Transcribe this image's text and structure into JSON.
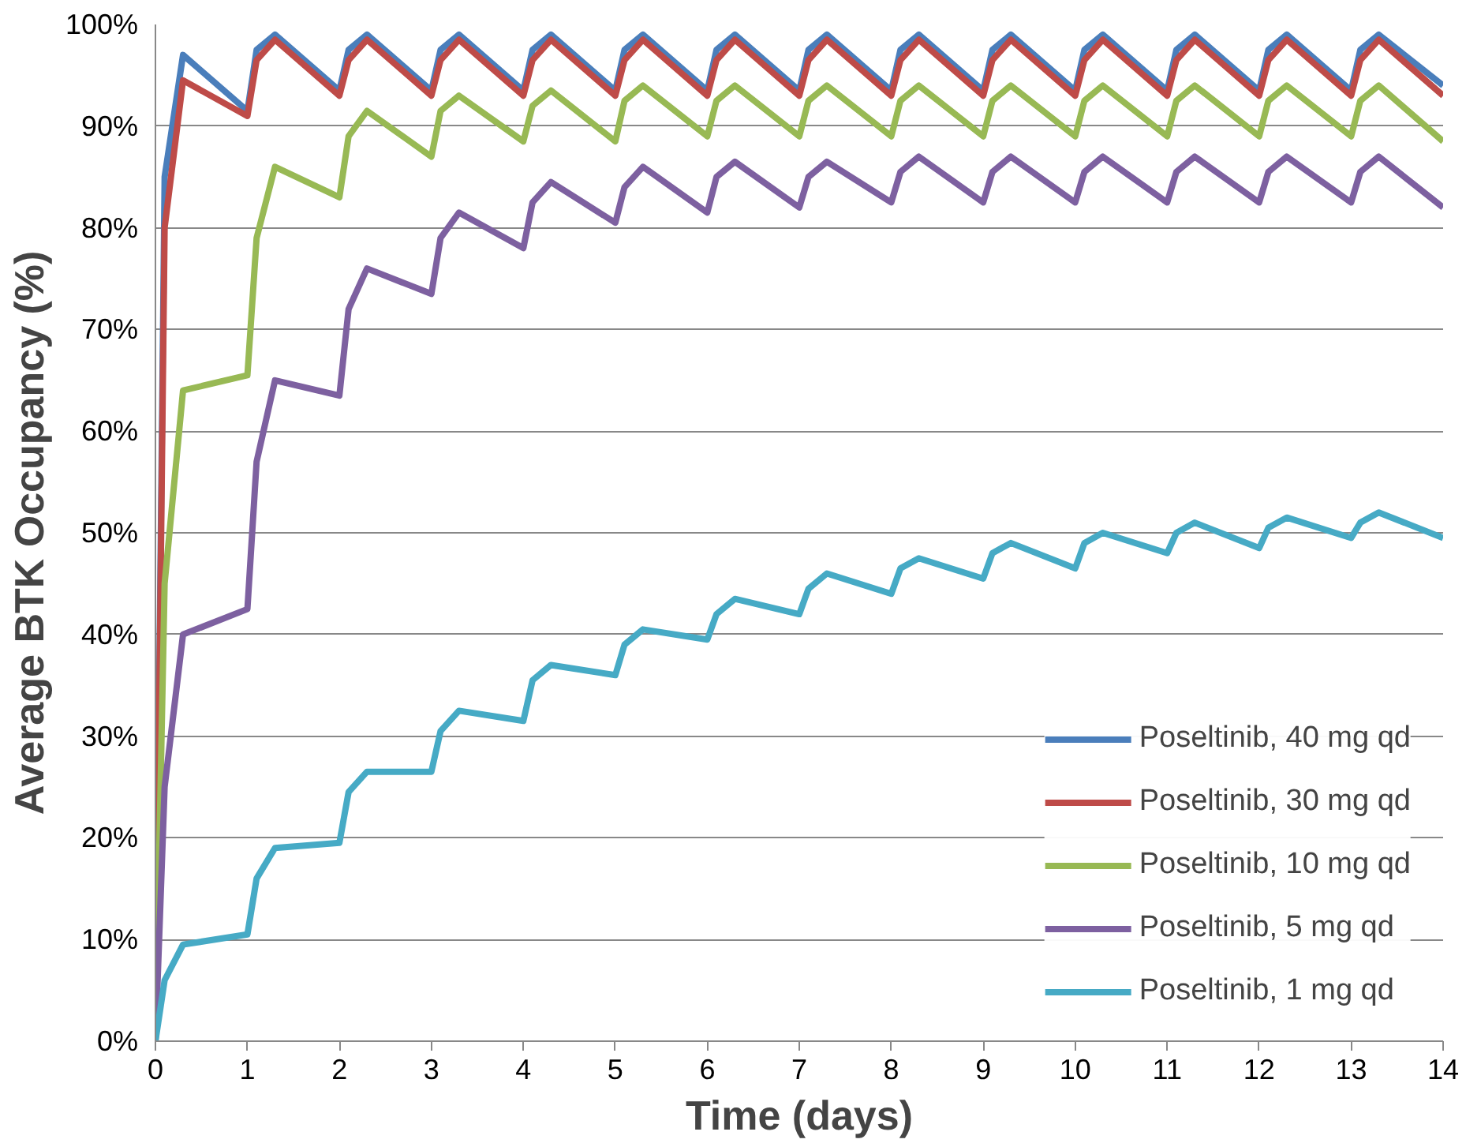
{
  "chart_data": {
    "type": "line",
    "xlabel": "Time (days)",
    "ylabel": "Average BTK Occupancy (%)",
    "x": [
      0,
      0.1,
      0.3,
      1,
      1.1,
      1.3,
      2,
      2.1,
      2.3,
      3,
      3.1,
      3.3,
      4,
      4.1,
      4.3,
      5,
      5.1,
      5.3,
      6,
      6.1,
      6.3,
      7,
      7.1,
      7.3,
      8,
      8.1,
      8.3,
      9,
      9.1,
      9.3,
      10,
      10.1,
      10.3,
      11,
      11.1,
      11.3,
      12,
      12.1,
      12.3,
      13,
      13.1,
      13.3,
      14
    ],
    "xlim": [
      0,
      14
    ],
    "xticks": [
      0,
      1,
      2,
      3,
      4,
      5,
      6,
      7,
      8,
      9,
      10,
      11,
      12,
      13,
      14
    ],
    "ylim": [
      0,
      100
    ],
    "yticks": [
      {
        "value": 0,
        "label": "0%"
      },
      {
        "value": 10,
        "label": "10%"
      },
      {
        "value": 20,
        "label": "20%"
      },
      {
        "value": 30,
        "label": "30%"
      },
      {
        "value": 40,
        "label": "40%"
      },
      {
        "value": 50,
        "label": "50%"
      },
      {
        "value": 60,
        "label": "60%"
      },
      {
        "value": 70,
        "label": "70%"
      },
      {
        "value": 80,
        "label": "80%"
      },
      {
        "value": 90,
        "label": "90%"
      },
      {
        "value": 100,
        "label": "100%"
      }
    ],
    "grid": "y",
    "legend": "bottom right",
    "line_style": "solid",
    "marker": "none",
    "series": [
      {
        "name": "Poseltinib, 40 mg qd",
        "color": "#4a7ebb",
        "values": [
          0,
          85,
          97,
          91.5,
          97.5,
          99,
          93.5,
          97.5,
          99,
          93.5,
          97.5,
          99,
          93.5,
          97.5,
          99,
          93.5,
          97.5,
          99,
          93.5,
          97.5,
          99,
          93.5,
          97.5,
          99,
          93.5,
          97.5,
          99,
          93.5,
          97.5,
          99,
          93.5,
          97.5,
          99,
          93.5,
          97.5,
          99,
          93.5,
          97.5,
          99,
          93.5,
          97.5,
          99,
          94
        ]
      },
      {
        "name": "Poseltinib, 30 mg qd",
        "color": "#be4b48",
        "values": [
          0,
          80,
          94.5,
          91,
          96.5,
          98.5,
          93,
          96.5,
          98.5,
          93,
          96.5,
          98.5,
          93,
          96.5,
          98.5,
          93,
          96.5,
          98.5,
          93,
          96.5,
          98.5,
          93,
          96.5,
          98.5,
          93,
          96.5,
          98.5,
          93,
          96.5,
          98.5,
          93,
          96.5,
          98.5,
          93,
          96.5,
          98.5,
          93,
          96.5,
          98.5,
          93,
          96.5,
          98.5,
          93
        ]
      },
      {
        "name": "Poseltinib, 10 mg qd",
        "color": "#98b954",
        "values": [
          0,
          45,
          64,
          65.5,
          79,
          86,
          83,
          89,
          91.5,
          87,
          91.5,
          93,
          88.5,
          92,
          93.5,
          88.5,
          92.5,
          94,
          89,
          92.5,
          94,
          89,
          92.5,
          94,
          89,
          92.5,
          94,
          89,
          92.5,
          94,
          89,
          92.5,
          94,
          89,
          92.5,
          94,
          89,
          92.5,
          94,
          89,
          92.5,
          94,
          88.5
        ]
      },
      {
        "name": "Poseltinib, 5 mg qd",
        "color": "#7d60a0",
        "values": [
          0,
          25,
          40,
          42.5,
          57,
          65,
          63.5,
          72,
          76,
          73.5,
          79,
          81.5,
          78,
          82.5,
          84.5,
          80.5,
          84,
          86,
          81.5,
          85,
          86.5,
          82,
          85,
          86.5,
          82.5,
          85.5,
          87,
          82.5,
          85.5,
          87,
          82.5,
          85.5,
          87,
          82.5,
          85.5,
          87,
          82.5,
          85.5,
          87,
          82.5,
          85.5,
          87,
          82
        ]
      },
      {
        "name": "Poseltinib, 1 mg qd",
        "color": "#46aac5",
        "values": [
          0,
          6,
          9.5,
          10.5,
          16,
          19,
          19.5,
          24.5,
          26.5,
          26.5,
          30.5,
          32.5,
          31.5,
          35.5,
          37,
          36,
          39,
          40.5,
          39.5,
          42,
          43.5,
          42,
          44.5,
          46,
          44,
          46.5,
          47.5,
          45.5,
          48,
          49,
          46.5,
          49,
          50,
          48,
          50,
          51,
          48.5,
          50.5,
          51.5,
          49.5,
          51,
          52,
          49.5
        ]
      }
    ]
  }
}
